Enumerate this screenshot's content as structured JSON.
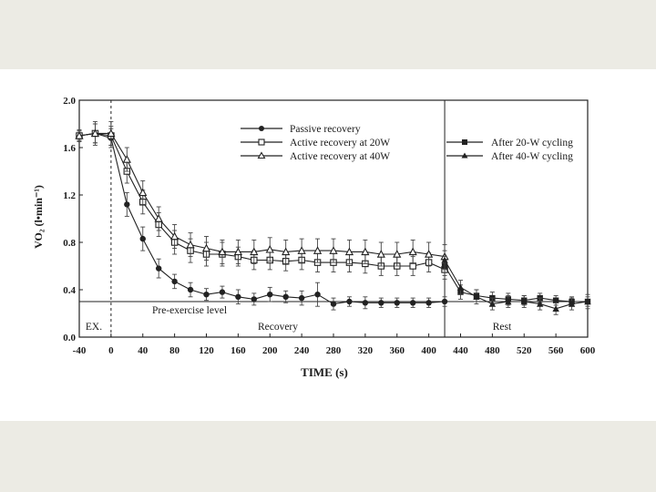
{
  "chart_data": {
    "type": "line",
    "title": "",
    "xlabel": "TIME (s)",
    "ylabel": "VO₂ (l•min⁻¹)",
    "xlim": [
      -40,
      600
    ],
    "ylim": [
      0.0,
      2.0
    ],
    "x_ticks": [
      "-40",
      "0",
      "40",
      "80",
      "120",
      "160",
      "200",
      "240",
      "280",
      "320",
      "360",
      "400",
      "440",
      "480",
      "520",
      "560",
      "600"
    ],
    "y_ticks": [
      "0.0",
      "0.4",
      "0.8",
      "1.2",
      "1.6",
      "2.0"
    ],
    "grid": false,
    "legend_position": "top-center",
    "legend_right_position": "top-right",
    "phase_labels": {
      "ex": "EX.",
      "recovery": "Recovery",
      "rest": "Rest"
    },
    "baseline_label": "Pre-exercise level",
    "baseline_value": 0.3,
    "vertical_lines_x": [
      0,
      420
    ],
    "series": [
      {
        "name": "Passive recovery",
        "marker": "filled-circle",
        "x": [
          -40,
          -20,
          0,
          20,
          40,
          60,
          80,
          100,
          120,
          140,
          160,
          180,
          200,
          220,
          240,
          260,
          280,
          300,
          320,
          340,
          360,
          380,
          400,
          420
        ],
        "values": [
          1.7,
          1.72,
          1.68,
          1.12,
          0.83,
          0.58,
          0.47,
          0.4,
          0.36,
          0.38,
          0.34,
          0.32,
          0.36,
          0.34,
          0.33,
          0.36,
          0.28,
          0.3,
          0.29,
          0.29,
          0.29,
          0.29,
          0.29,
          0.3
        ],
        "errors": [
          0.05,
          0.1,
          0.08,
          0.1,
          0.1,
          0.08,
          0.06,
          0.06,
          0.05,
          0.05,
          0.06,
          0.05,
          0.06,
          0.05,
          0.06,
          0.1,
          0.05,
          0.04,
          0.05,
          0.04,
          0.04,
          0.04,
          0.04,
          0.04
        ]
      },
      {
        "name": "Active recovery at 20W",
        "marker": "open-square",
        "x": [
          -40,
          -20,
          0,
          20,
          40,
          60,
          80,
          100,
          120,
          140,
          160,
          180,
          200,
          220,
          240,
          260,
          280,
          300,
          320,
          340,
          360,
          380,
          400,
          420
        ],
        "values": [
          1.7,
          1.72,
          1.7,
          1.4,
          1.14,
          0.95,
          0.8,
          0.73,
          0.7,
          0.7,
          0.68,
          0.65,
          0.65,
          0.64,
          0.65,
          0.63,
          0.63,
          0.63,
          0.62,
          0.6,
          0.6,
          0.6,
          0.63,
          0.57
        ],
        "errors": [
          0.04,
          0.08,
          0.08,
          0.1,
          0.1,
          0.1,
          0.1,
          0.1,
          0.1,
          0.1,
          0.08,
          0.08,
          0.08,
          0.08,
          0.08,
          0.08,
          0.08,
          0.08,
          0.08,
          0.08,
          0.08,
          0.08,
          0.08,
          0.08
        ]
      },
      {
        "name": "Active recovery at 40W",
        "marker": "open-triangle",
        "x": [
          -40,
          -20,
          0,
          20,
          40,
          60,
          80,
          100,
          120,
          140,
          160,
          180,
          200,
          220,
          240,
          260,
          280,
          300,
          320,
          340,
          360,
          380,
          400,
          420
        ],
        "values": [
          1.7,
          1.72,
          1.72,
          1.5,
          1.22,
          1.0,
          0.85,
          0.78,
          0.75,
          0.72,
          0.72,
          0.72,
          0.74,
          0.72,
          0.73,
          0.73,
          0.73,
          0.72,
          0.72,
          0.7,
          0.7,
          0.72,
          0.7,
          0.68
        ],
        "errors": [
          0.04,
          0.08,
          0.1,
          0.1,
          0.1,
          0.1,
          0.1,
          0.1,
          0.1,
          0.1,
          0.1,
          0.1,
          0.1,
          0.1,
          0.1,
          0.1,
          0.1,
          0.1,
          0.1,
          0.1,
          0.1,
          0.1,
          0.1,
          0.1
        ]
      },
      {
        "name": "After 20-W cycling",
        "marker": "filled-square",
        "x": [
          420,
          440,
          460,
          480,
          500,
          520,
          540,
          560,
          580,
          600
        ],
        "values": [
          0.6,
          0.38,
          0.35,
          0.33,
          0.32,
          0.31,
          0.33,
          0.31,
          0.3,
          0.3
        ],
        "errors": [
          0.08,
          0.06,
          0.05,
          0.05,
          0.05,
          0.04,
          0.04,
          0.04,
          0.04,
          0.04
        ]
      },
      {
        "name": "After 40-W cycling",
        "marker": "filled-triangle",
        "x": [
          420,
          440,
          460,
          480,
          500,
          520,
          540,
          560,
          580,
          600
        ],
        "values": [
          0.65,
          0.42,
          0.34,
          0.28,
          0.3,
          0.3,
          0.28,
          0.24,
          0.28,
          0.3
        ],
        "errors": [
          0.08,
          0.06,
          0.06,
          0.05,
          0.05,
          0.05,
          0.05,
          0.05,
          0.05,
          0.06
        ]
      }
    ]
  }
}
